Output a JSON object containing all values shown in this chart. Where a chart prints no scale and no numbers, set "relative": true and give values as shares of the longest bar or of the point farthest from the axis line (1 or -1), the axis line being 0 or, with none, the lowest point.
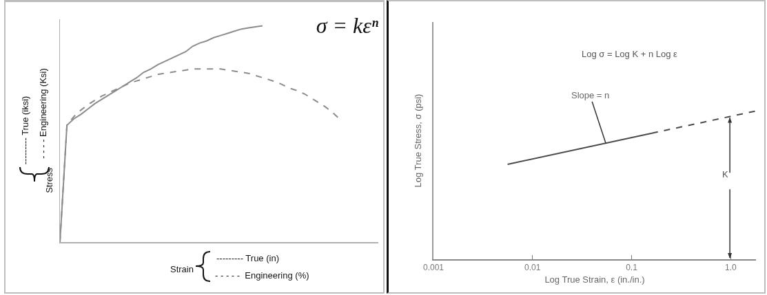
{
  "chart_data": [
    {
      "type": "line",
      "relative": true,
      "title": "σ = kεⁿ",
      "xlabel": "Strain",
      "ylabel": "Stress",
      "tick_labels": false,
      "categories": [
        null,
        null,
        null,
        null,
        null,
        null,
        null,
        null,
        null,
        null,
        null,
        null,
        null,
        null,
        null,
        null,
        null,
        null,
        null,
        null,
        null,
        null,
        null,
        null,
        null,
        null,
        null,
        null,
        null,
        null,
        null,
        null,
        null,
        null,
        null,
        null,
        null,
        null,
        null,
        null,
        null,
        null,
        null,
        null,
        null,
        null
      ],
      "series": [
        {
          "color": "#8c8c8c",
          "line_style": "solid",
          "values": [
            0,
            0.54,
            0.57,
            0.59,
            0.615,
            0.64,
            0.66,
            0.68,
            0.7,
            0.72,
            0.74,
            0.76,
            0.785,
            0.8,
            0.82,
            0.835,
            0.85,
            0.865,
            0.88,
            0.905,
            0.92,
            0.93,
            0.945,
            0.955,
            0.965,
            0.975,
            0.985,
            0.99,
            0.995,
            1.0,
            null,
            null,
            null,
            null,
            null,
            null,
            null,
            null,
            null,
            null,
            null,
            null,
            null,
            null,
            null,
            null
          ]
        },
        {
          "color": "#8c8c8c",
          "line_style": "dashed",
          "values": [
            0,
            0.54,
            0.58,
            0.61,
            0.635,
            0.655,
            0.675,
            0.69,
            0.705,
            0.72,
            0.735,
            0.745,
            0.755,
            0.765,
            0.775,
            0.78,
            0.785,
            0.79,
            0.795,
            0.8,
            0.8,
            0.8,
            0.8,
            0.8,
            0.795,
            0.79,
            0.785,
            0.78,
            0.77,
            0.76,
            0.75,
            0.74,
            0.725,
            0.71,
            0.7,
            0.685,
            0.665,
            0.645,
            0.625,
            0.6,
            0.57,
            null,
            null,
            null,
            null,
            null
          ]
        }
      ],
      "annotations": [
        "--------- True (iksi)",
        "- - - - Engineering (Ksi)",
        "--------- True (in)",
        "- - - - -  Engineering (%)"
      ]
    },
    {
      "type": "line",
      "relative": true,
      "log": "x",
      "xlabel": "Log True Strain, ε (in./in.)",
      "ylabel": "Log True Stress, σ (psi)",
      "tick_labels": "x",
      "xlim": [
        0.001,
        1.8
      ],
      "xticks": [
        0.001,
        0.01,
        0.1,
        {
          "value": 1,
          "label": "1.0"
        }
      ],
      "series": [
        {
          "color": "#4a4a4a",
          "line_style": "solid",
          "x": [
            0.0056,
            0.16
          ],
          "values": [
            0.64,
            0.85
          ]
        },
        {
          "color": "#4a4a4a",
          "line_style": "dashed",
          "x": [
            0.16,
            1.8
          ],
          "values": [
            0.85,
            1.0
          ]
        }
      ],
      "annotations": [
        "Log σ = Log K + n Log ε",
        {
          "text": "Slope = n",
          "x": 0.055,
          "y": 0.78
        },
        "K"
      ]
    }
  ]
}
